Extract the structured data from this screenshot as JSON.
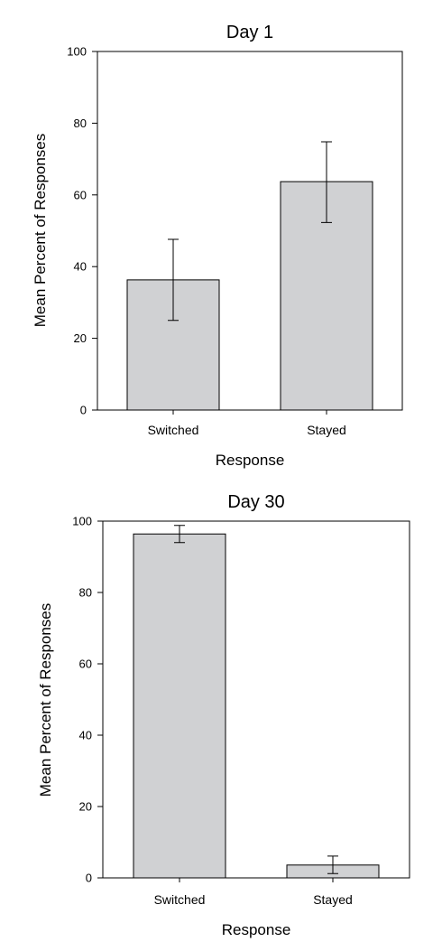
{
  "chart_data": [
    {
      "type": "bar",
      "title": "Day 1",
      "xlabel": "Response",
      "ylabel": "Mean Percent of Responses",
      "categories": [
        "Switched",
        "Stayed"
      ],
      "values": [
        36.3,
        63.7
      ],
      "error_low": [
        25.0,
        52.3
      ],
      "error_high": [
        47.6,
        74.8
      ],
      "ylim": [
        0,
        100
      ],
      "yticks": [
        0,
        20,
        40,
        60,
        80,
        100
      ],
      "bar_color": "#d0d1d3",
      "grid": false
    },
    {
      "type": "bar",
      "title": "Day 30",
      "xlabel": "Response",
      "ylabel": "Mean Percent of Responses",
      "categories": [
        "Switched",
        "Stayed"
      ],
      "values": [
        96.4,
        3.6
      ],
      "error_low": [
        94.0,
        1.2
      ],
      "error_high": [
        98.8,
        6.1
      ],
      "ylim": [
        0,
        100
      ],
      "yticks": [
        0,
        20,
        40,
        60,
        80,
        100
      ],
      "bar_color": "#d0d1d3",
      "grid": false
    }
  ]
}
